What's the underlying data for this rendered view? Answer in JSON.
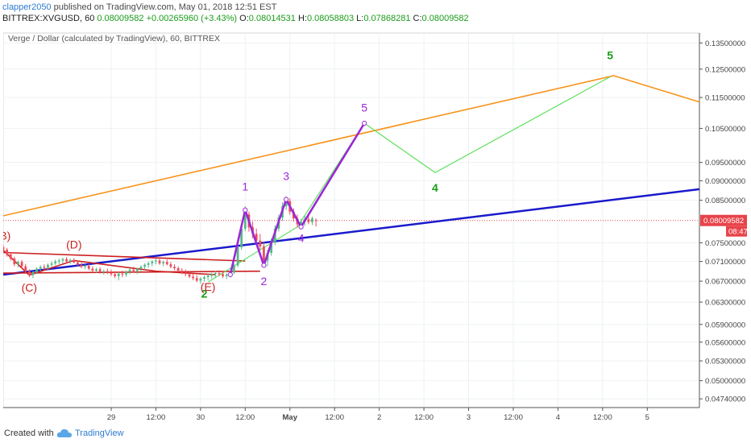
{
  "header": {
    "author": "clapper2050",
    "published_text": "published on TradingView.com, May 01, 2018 12:51 EST",
    "symbol_line": "BITTREX:XVGUSD, 60",
    "last_price": "0.08009582",
    "change": "+0.00265960 (+3.43%)",
    "ohlc": {
      "o_label": "O:",
      "o": "0.08014531",
      "h_label": "H:",
      "h": "0.08058803",
      "l_label": "L:",
      "l": "0.07868281",
      "c_label": "C:",
      "c": "0.08009582"
    }
  },
  "chart_title": "Verge / Dollar (calculated by TradingView), 60, BITTREX",
  "footer": {
    "created_with": "Created with",
    "brand": "TradingView"
  },
  "colors": {
    "orange_trend": "#f7931a",
    "blue_trend": "#1a1acc",
    "red_triangle": "#cc1f1f",
    "purple_wave": "#9c27d6",
    "green_projection": "#5fe05f",
    "wave_label_green": "#1a9c1a",
    "up_candle": "#53b987",
    "down_candle": "#eb4d5c",
    "price_tag": "#e8434a"
  },
  "chart_data": {
    "type": "candlestick",
    "title": "Verge / Dollar (calculated by TradingView), 60, BITTREX",
    "x_axis": {
      "ticks": [
        "29",
        "12:00",
        "30",
        "12:00",
        "May",
        "12:00",
        "2",
        "12:00",
        "3",
        "12:00",
        "4",
        "12:00",
        "5"
      ],
      "tick_hours": [
        0,
        12,
        24,
        36,
        48,
        60,
        72,
        84,
        96,
        108,
        120,
        132,
        144
      ],
      "range_hours": [
        -29,
        158
      ]
    },
    "y_axis": {
      "scale": "log",
      "ticks": [
        "0.13500000",
        "0.12500000",
        "0.11500000",
        "0.10500000",
        "0.09500000",
        "0.09000000",
        "0.08500000",
        "0.07500000",
        "0.07100000",
        "0.06700000",
        "0.06300000",
        "0.05900000",
        "0.05600000",
        "0.05300000",
        "0.05000000",
        "0.04740000"
      ],
      "tick_values": [
        0.135,
        0.125,
        0.115,
        0.105,
        0.095,
        0.09,
        0.085,
        0.075,
        0.071,
        0.067,
        0.063,
        0.059,
        0.056,
        0.053,
        0.05,
        0.0474
      ],
      "range": [
        0.0462,
        0.139
      ]
    },
    "last_price": {
      "label": "0.08009582",
      "value": 0.08009582,
      "countdown": "08:47"
    },
    "candles": [
      {
        "t": -29,
        "o": 0.0741,
        "h": 0.0746,
        "l": 0.0733,
        "c": 0.0735
      },
      {
        "t": -28,
        "o": 0.0735,
        "h": 0.0739,
        "l": 0.072,
        "c": 0.0725
      },
      {
        "t": -27,
        "o": 0.0725,
        "h": 0.073,
        "l": 0.0712,
        "c": 0.0716
      },
      {
        "t": -26,
        "o": 0.0716,
        "h": 0.072,
        "l": 0.07,
        "c": 0.0704
      },
      {
        "t": -25,
        "o": 0.0704,
        "h": 0.0712,
        "l": 0.0698,
        "c": 0.0709
      },
      {
        "t": -24,
        "o": 0.0709,
        "h": 0.0713,
        "l": 0.0696,
        "c": 0.07
      },
      {
        "t": -23,
        "o": 0.07,
        "h": 0.0705,
        "l": 0.0686,
        "c": 0.069
      },
      {
        "t": -22,
        "o": 0.069,
        "h": 0.0694,
        "l": 0.0678,
        "c": 0.0682
      },
      {
        "t": -21,
        "o": 0.0682,
        "h": 0.069,
        "l": 0.0676,
        "c": 0.0688
      },
      {
        "t": -20,
        "o": 0.0688,
        "h": 0.0698,
        "l": 0.0684,
        "c": 0.0695
      },
      {
        "t": -19,
        "o": 0.0695,
        "h": 0.0702,
        "l": 0.069,
        "c": 0.0699
      },
      {
        "t": -18,
        "o": 0.0699,
        "h": 0.0704,
        "l": 0.0692,
        "c": 0.0697
      },
      {
        "t": -17,
        "o": 0.0697,
        "h": 0.0706,
        "l": 0.0693,
        "c": 0.0703
      },
      {
        "t": -16,
        "o": 0.0703,
        "h": 0.071,
        "l": 0.0698,
        "c": 0.0706
      },
      {
        "t": -15,
        "o": 0.0706,
        "h": 0.0714,
        "l": 0.0702,
        "c": 0.071
      },
      {
        "t": -14,
        "o": 0.071,
        "h": 0.0716,
        "l": 0.0704,
        "c": 0.0712
      },
      {
        "t": -13,
        "o": 0.0712,
        "h": 0.0718,
        "l": 0.0706,
        "c": 0.0715
      },
      {
        "t": -12,
        "o": 0.0715,
        "h": 0.0719,
        "l": 0.0707,
        "c": 0.071
      },
      {
        "t": -11,
        "o": 0.071,
        "h": 0.0716,
        "l": 0.0705,
        "c": 0.0713
      },
      {
        "t": -10,
        "o": 0.0713,
        "h": 0.0717,
        "l": 0.0706,
        "c": 0.0708
      },
      {
        "t": -9,
        "o": 0.0708,
        "h": 0.0712,
        "l": 0.07,
        "c": 0.0703
      },
      {
        "t": -8,
        "o": 0.0703,
        "h": 0.0708,
        "l": 0.0696,
        "c": 0.0699
      },
      {
        "t": -7,
        "o": 0.0699,
        "h": 0.0704,
        "l": 0.0694,
        "c": 0.0701
      },
      {
        "t": -6,
        "o": 0.0701,
        "h": 0.0705,
        "l": 0.0692,
        "c": 0.0695
      },
      {
        "t": -5,
        "o": 0.0695,
        "h": 0.07,
        "l": 0.0688,
        "c": 0.0691
      },
      {
        "t": -4,
        "o": 0.0691,
        "h": 0.0697,
        "l": 0.0686,
        "c": 0.0694
      },
      {
        "t": -3,
        "o": 0.0694,
        "h": 0.0698,
        "l": 0.0685,
        "c": 0.0688
      },
      {
        "t": -2,
        "o": 0.0688,
        "h": 0.0693,
        "l": 0.0683,
        "c": 0.069
      },
      {
        "t": -1,
        "o": 0.069,
        "h": 0.0695,
        "l": 0.0684,
        "c": 0.0687
      },
      {
        "t": 0,
        "o": 0.0687,
        "h": 0.0693,
        "l": 0.068,
        "c": 0.0684
      },
      {
        "t": 1,
        "o": 0.0684,
        "h": 0.069,
        "l": 0.0676,
        "c": 0.068
      },
      {
        "t": 2,
        "o": 0.068,
        "h": 0.0688,
        "l": 0.0672,
        "c": 0.0685
      },
      {
        "t": 3,
        "o": 0.0685,
        "h": 0.0691,
        "l": 0.0678,
        "c": 0.0683
      },
      {
        "t": 4,
        "o": 0.0683,
        "h": 0.0692,
        "l": 0.0679,
        "c": 0.0689
      },
      {
        "t": 5,
        "o": 0.0689,
        "h": 0.0696,
        "l": 0.0684,
        "c": 0.0693
      },
      {
        "t": 6,
        "o": 0.0693,
        "h": 0.0699,
        "l": 0.0687,
        "c": 0.069
      },
      {
        "t": 7,
        "o": 0.069,
        "h": 0.0697,
        "l": 0.0684,
        "c": 0.0695
      },
      {
        "t": 8,
        "o": 0.0695,
        "h": 0.0702,
        "l": 0.069,
        "c": 0.0699
      },
      {
        "t": 9,
        "o": 0.0699,
        "h": 0.0706,
        "l": 0.0693,
        "c": 0.0703
      },
      {
        "t": 10,
        "o": 0.0703,
        "h": 0.071,
        "l": 0.0697,
        "c": 0.0706
      },
      {
        "t": 11,
        "o": 0.0706,
        "h": 0.0713,
        "l": 0.07,
        "c": 0.071
      },
      {
        "t": 12,
        "o": 0.071,
        "h": 0.0716,
        "l": 0.0704,
        "c": 0.0712
      },
      {
        "t": 13,
        "o": 0.0712,
        "h": 0.0718,
        "l": 0.0703,
        "c": 0.0706
      },
      {
        "t": 14,
        "o": 0.0706,
        "h": 0.0712,
        "l": 0.07,
        "c": 0.0709
      },
      {
        "t": 15,
        "o": 0.0709,
        "h": 0.0714,
        "l": 0.0702,
        "c": 0.0704
      },
      {
        "t": 16,
        "o": 0.0704,
        "h": 0.0709,
        "l": 0.0696,
        "c": 0.0699
      },
      {
        "t": 17,
        "o": 0.0699,
        "h": 0.0704,
        "l": 0.0692,
        "c": 0.0696
      },
      {
        "t": 18,
        "o": 0.0696,
        "h": 0.07,
        "l": 0.0688,
        "c": 0.0691
      },
      {
        "t": 19,
        "o": 0.0691,
        "h": 0.0696,
        "l": 0.0684,
        "c": 0.0687
      },
      {
        "t": 20,
        "o": 0.0687,
        "h": 0.0693,
        "l": 0.068,
        "c": 0.0684
      },
      {
        "t": 21,
        "o": 0.0684,
        "h": 0.0689,
        "l": 0.0676,
        "c": 0.0679
      },
      {
        "t": 22,
        "o": 0.0679,
        "h": 0.0685,
        "l": 0.0672,
        "c": 0.0676
      },
      {
        "t": 23,
        "o": 0.0676,
        "h": 0.0682,
        "l": 0.0668,
        "c": 0.0671
      },
      {
        "t": 24,
        "o": 0.0671,
        "h": 0.0678,
        "l": 0.0665,
        "c": 0.0675
      },
      {
        "t": 25,
        "o": 0.0675,
        "h": 0.0681,
        "l": 0.0669,
        "c": 0.0678
      },
      {
        "t": 26,
        "o": 0.0678,
        "h": 0.0684,
        "l": 0.0672,
        "c": 0.0681
      },
      {
        "t": 27,
        "o": 0.0681,
        "h": 0.0687,
        "l": 0.0675,
        "c": 0.0684
      },
      {
        "t": 28,
        "o": 0.0684,
        "h": 0.069,
        "l": 0.0678,
        "c": 0.0686
      },
      {
        "t": 29,
        "o": 0.0686,
        "h": 0.0692,
        "l": 0.068,
        "c": 0.0684
      },
      {
        "t": 30,
        "o": 0.0684,
        "h": 0.069,
        "l": 0.0676,
        "c": 0.068
      },
      {
        "t": 31,
        "o": 0.068,
        "h": 0.0686,
        "l": 0.0674,
        "c": 0.0683
      },
      {
        "t": 32,
        "o": 0.0683,
        "h": 0.069,
        "l": 0.0677,
        "c": 0.0687
      },
      {
        "t": 33,
        "o": 0.0687,
        "h": 0.0705,
        "l": 0.0684,
        "c": 0.0702
      },
      {
        "t": 34,
        "o": 0.0702,
        "h": 0.0745,
        "l": 0.0698,
        "c": 0.074
      },
      {
        "t": 35,
        "o": 0.074,
        "h": 0.079,
        "l": 0.0735,
        "c": 0.0782
      },
      {
        "t": 36,
        "o": 0.0782,
        "h": 0.0835,
        "l": 0.0776,
        "c": 0.0815
      },
      {
        "t": 37,
        "o": 0.0815,
        "h": 0.0822,
        "l": 0.0775,
        "c": 0.0785
      },
      {
        "t": 38,
        "o": 0.0785,
        "h": 0.0798,
        "l": 0.076,
        "c": 0.077
      },
      {
        "t": 39,
        "o": 0.077,
        "h": 0.0782,
        "l": 0.0748,
        "c": 0.0755
      },
      {
        "t": 40,
        "o": 0.0755,
        "h": 0.077,
        "l": 0.0735,
        "c": 0.0742
      },
      {
        "t": 41,
        "o": 0.0742,
        "h": 0.0752,
        "l": 0.0702,
        "c": 0.0712
      },
      {
        "t": 42,
        "o": 0.0712,
        "h": 0.0735,
        "l": 0.07,
        "c": 0.0728
      },
      {
        "t": 43,
        "o": 0.0728,
        "h": 0.076,
        "l": 0.0722,
        "c": 0.0752
      },
      {
        "t": 44,
        "o": 0.0752,
        "h": 0.079,
        "l": 0.0745,
        "c": 0.0782
      },
      {
        "t": 45,
        "o": 0.0782,
        "h": 0.0815,
        "l": 0.0775,
        "c": 0.0808
      },
      {
        "t": 46,
        "o": 0.0808,
        "h": 0.0845,
        "l": 0.08,
        "c": 0.0835
      },
      {
        "t": 47,
        "o": 0.0835,
        "h": 0.086,
        "l": 0.0826,
        "c": 0.0848
      },
      {
        "t": 48,
        "o": 0.0848,
        "h": 0.0855,
        "l": 0.0815,
        "c": 0.0822
      },
      {
        "t": 49,
        "o": 0.0822,
        "h": 0.083,
        "l": 0.0798,
        "c": 0.0806
      },
      {
        "t": 50,
        "o": 0.0806,
        "h": 0.0815,
        "l": 0.0785,
        "c": 0.0792
      },
      {
        "t": 51,
        "o": 0.0792,
        "h": 0.0805,
        "l": 0.078,
        "c": 0.0798
      },
      {
        "t": 52,
        "o": 0.0798,
        "h": 0.0812,
        "l": 0.0788,
        "c": 0.0804
      },
      {
        "t": 53,
        "o": 0.0804,
        "h": 0.0815,
        "l": 0.0792,
        "c": 0.0797
      },
      {
        "t": 54,
        "o": 0.0797,
        "h": 0.081,
        "l": 0.079,
        "c": 0.0806
      },
      {
        "t": 55,
        "o": 0.08014531,
        "h": 0.08058803,
        "l": 0.07868281,
        "c": 0.08009582
      }
    ],
    "drawings": {
      "orange_trendline": [
        [
          -29,
          0.0812
        ],
        [
          135,
          0.1226
        ],
        [
          158,
          0.1135
        ]
      ],
      "blue_trendline": [
        [
          -29,
          0.0683
        ],
        [
          158,
          0.0878
        ]
      ],
      "red_triangle_upper": [
        [
          -29,
          0.0729
        ],
        [
          36,
          0.0711
        ]
      ],
      "red_triangle_lower": [
        [
          -29,
          0.0686
        ],
        [
          40,
          0.069
        ]
      ],
      "red_abcde_path": [
        [
          -29,
          0.0734
        ],
        [
          -22,
          0.0682
        ],
        [
          -10,
          0.0712
        ],
        [
          12,
          0.069
        ],
        [
          28,
          0.0683
        ]
      ],
      "purple_wave": [
        [
          32,
          0.0683
        ],
        [
          36,
          0.0826
        ],
        [
          41,
          0.0702
        ],
        [
          47,
          0.0852
        ],
        [
          51,
          0.0786
        ],
        [
          68,
          0.1066
        ]
      ],
      "green_projection": [
        [
          26,
          0.0668
        ],
        [
          50,
          0.0786
        ],
        [
          68,
          0.1066
        ],
        [
          87,
          0.0922
        ],
        [
          134,
          0.1222
        ]
      ]
    },
    "wave_labels_purple": [
      {
        "text": "1",
        "t": 36,
        "v": 0.0875
      },
      {
        "text": "2",
        "t": 41,
        "v": 0.0662
      },
      {
        "text": "3",
        "t": 47,
        "v": 0.0902
      },
      {
        "text": "4",
        "t": 51,
        "v": 0.0752
      },
      {
        "text": "5",
        "t": 68,
        "v": 0.1103
      }
    ],
    "wave_labels_green": [
      {
        "text": "2",
        "t": 25,
        "v": 0.0638
      },
      {
        "text": "4",
        "t": 87,
        "v": 0.0872
      },
      {
        "text": "5",
        "t": 134,
        "v": 0.1287
      }
    ],
    "wave_labels_red": [
      {
        "text": "(B)",
        "t": -29,
        "v": 0.0757
      },
      {
        "text": "(C)",
        "t": -22,
        "v": 0.065
      },
      {
        "text": "(D)",
        "t": -10,
        "v": 0.0738
      },
      {
        "text": "(E)",
        "t": 26,
        "v": 0.0651
      }
    ]
  }
}
